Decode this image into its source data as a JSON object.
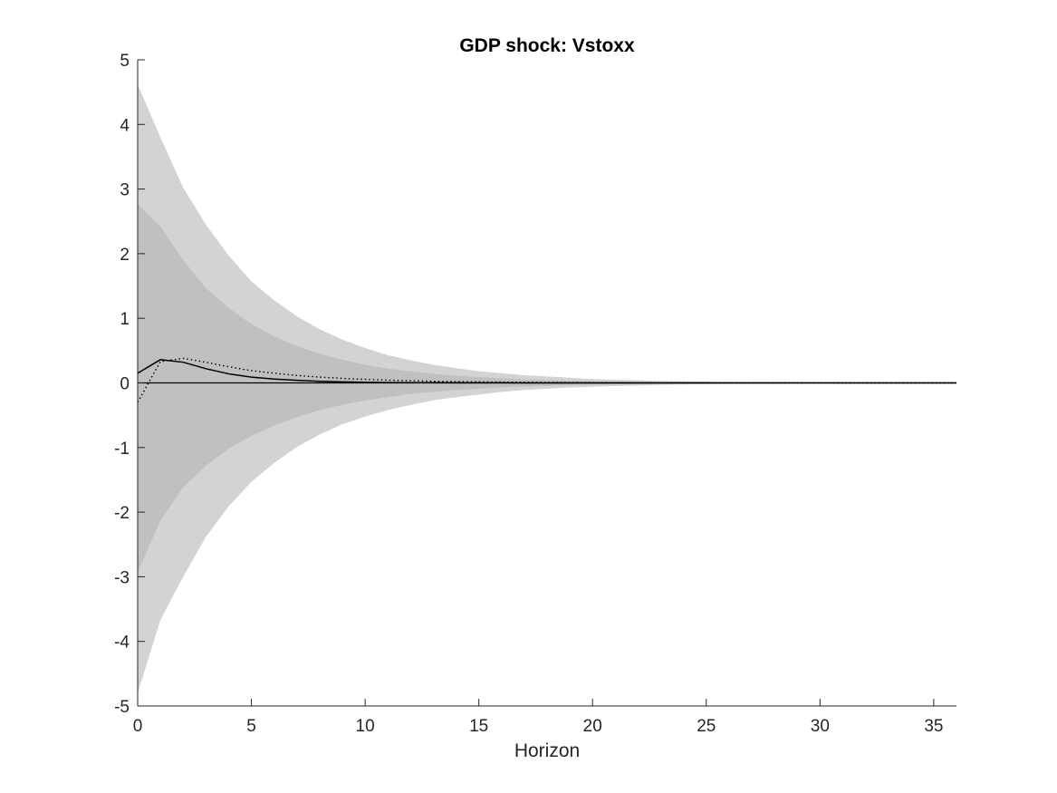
{
  "chart_data": {
    "type": "area",
    "title": "GDP shock: Vstoxx",
    "xlabel": "Horizon",
    "ylabel": "",
    "xlim": [
      0,
      36
    ],
    "ylim": [
      -5,
      5
    ],
    "xticks": [
      0,
      5,
      10,
      15,
      20,
      25,
      30,
      35
    ],
    "yticks": [
      -5,
      -4,
      -3,
      -2,
      -1,
      0,
      1,
      2,
      3,
      4,
      5
    ],
    "grid": false,
    "legend": "none",
    "colors": {
      "outer_band": "#d3d3d3",
      "inner_band": "#c0c0c0",
      "median_line": "#000000",
      "dotted_line": "#000000",
      "zero_line": "#000000",
      "axis": "#262626"
    },
    "x": [
      0,
      1,
      2,
      3,
      4,
      5,
      6,
      7,
      8,
      9,
      10,
      11,
      12,
      13,
      14,
      15,
      16,
      17,
      18,
      19,
      20,
      21,
      22,
      23,
      24,
      25,
      26,
      27,
      28,
      29,
      30,
      31,
      32,
      33,
      34,
      35,
      36
    ],
    "bands": [
      {
        "role": "outer",
        "upper": [
          4.62,
          3.8,
          3.02,
          2.45,
          1.97,
          1.57,
          1.28,
          1.03,
          0.83,
          0.67,
          0.54,
          0.43,
          0.35,
          0.28,
          0.23,
          0.18,
          0.15,
          0.12,
          0.1,
          0.08,
          0.06,
          0.05,
          0.04,
          0.03,
          0.025,
          0.02,
          0.016,
          0.013,
          0.01,
          0.008,
          0.006,
          0.005,
          0.004,
          0.003,
          0.002,
          0.002,
          0.001
        ],
        "lower": [
          -4.8,
          -3.67,
          -3.0,
          -2.38,
          -1.91,
          -1.53,
          -1.24,
          -0.99,
          -0.8,
          -0.64,
          -0.52,
          -0.42,
          -0.34,
          -0.27,
          -0.22,
          -0.18,
          -0.14,
          -0.11,
          -0.09,
          -0.07,
          -0.06,
          -0.05,
          -0.04,
          -0.03,
          -0.025,
          -0.02,
          -0.016,
          -0.013,
          -0.01,
          -0.008,
          -0.006,
          -0.005,
          -0.004,
          -0.003,
          -0.002,
          -0.002,
          -0.001
        ]
      },
      {
        "role": "inner",
        "upper": [
          2.77,
          2.42,
          1.9,
          1.47,
          1.16,
          0.91,
          0.72,
          0.57,
          0.45,
          0.36,
          0.28,
          0.22,
          0.18,
          0.14,
          0.11,
          0.09,
          0.07,
          0.055,
          0.045,
          0.035,
          0.028,
          0.022,
          0.017,
          0.013,
          0.01,
          0.008,
          0.006,
          0.005,
          0.004,
          0.003,
          0.002,
          0.002,
          0.001,
          0.001,
          0.001,
          0.0005,
          0.0005
        ],
        "lower": [
          -2.93,
          -2.13,
          -1.62,
          -1.28,
          -1.02,
          -0.82,
          -0.66,
          -0.53,
          -0.42,
          -0.34,
          -0.27,
          -0.22,
          -0.17,
          -0.14,
          -0.11,
          -0.09,
          -0.07,
          -0.055,
          -0.045,
          -0.035,
          -0.028,
          -0.022,
          -0.017,
          -0.013,
          -0.01,
          -0.008,
          -0.006,
          -0.005,
          -0.004,
          -0.003,
          -0.002,
          -0.002,
          -0.001,
          -0.001,
          -0.001,
          -0.0005,
          -0.0005
        ]
      }
    ],
    "series": [
      {
        "style": "solid",
        "values": [
          0.15,
          0.36,
          0.32,
          0.22,
          0.14,
          0.09,
          0.06,
          0.04,
          0.025,
          0.016,
          0.01,
          0.006,
          0.004,
          0.003,
          0.002,
          0.001,
          0.001,
          0.0005,
          0.0003,
          0.0002,
          0.0001,
          0,
          0,
          0,
          0,
          0,
          0,
          0,
          0,
          0,
          0,
          0,
          0,
          0,
          0,
          0,
          0
        ]
      },
      {
        "style": "dotted",
        "values": [
          -0.3,
          0.33,
          0.38,
          0.32,
          0.25,
          0.19,
          0.15,
          0.115,
          0.09,
          0.07,
          0.055,
          0.043,
          0.034,
          0.026,
          0.02,
          0.016,
          0.012,
          0.01,
          0.008,
          0.006,
          0.005,
          0.004,
          0.003,
          0.002,
          0.002,
          0.001,
          0.001,
          0.001,
          0.0005,
          0.0005,
          0.0003,
          0.0002,
          0.0002,
          0.0001,
          0.0001,
          0,
          0
        ]
      }
    ]
  }
}
